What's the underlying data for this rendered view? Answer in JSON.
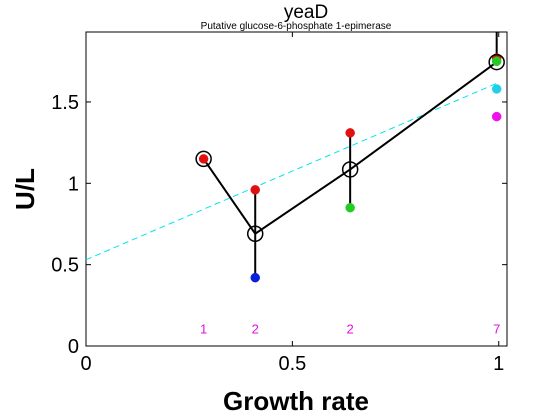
{
  "chart_data": {
    "type": "line",
    "title": "yeaD",
    "subtitle": "Putative glucose-6-phosphate 1-epimerase",
    "xlabel": "Growth rate",
    "ylabel": "U/L",
    "xlim": [
      0,
      1.02
    ],
    "ylim": [
      0,
      1.93
    ],
    "xticks": [
      0,
      0.5,
      1
    ],
    "xtick_labels": [
      "0",
      "0.5",
      "1"
    ],
    "yticks": [
      0,
      0.5,
      1,
      1.5
    ],
    "ytick_labels": [
      "0",
      "0.5",
      "1",
      "1.5"
    ],
    "grid": false,
    "legend": "none",
    "mean_series": {
      "x": [
        0.285,
        0.41,
        0.64,
        0.995
      ],
      "y": [
        1.15,
        0.69,
        1.085,
        1.745
      ],
      "err_low": [
        1.15,
        0.42,
        0.85,
        1.745
      ],
      "err_high": [
        1.15,
        0.96,
        1.31,
        1.93
      ]
    },
    "fit_line": {
      "x": [
        0,
        1
      ],
      "y": [
        0.53,
        1.62
      ],
      "color": "#00e5ee"
    },
    "replicate_points": [
      {
        "x": 0.285,
        "y": 1.15,
        "color": "#e01010"
      },
      {
        "x": 0.41,
        "y": 0.96,
        "color": "#e01010"
      },
      {
        "x": 0.41,
        "y": 0.42,
        "color": "#0a1fdd"
      },
      {
        "x": 0.64,
        "y": 1.31,
        "color": "#e01010"
      },
      {
        "x": 0.64,
        "y": 0.85,
        "color": "#22cc22"
      },
      {
        "x": 0.995,
        "y": 1.77,
        "color": "#e01010"
      },
      {
        "x": 0.995,
        "y": 1.75,
        "color": "#22cc22"
      },
      {
        "x": 0.995,
        "y": 1.58,
        "color": "#22cfe8"
      },
      {
        "x": 0.995,
        "y": 1.41,
        "color": "#ee11ee"
      }
    ],
    "count_labels": {
      "x": [
        0.285,
        0.41,
        0.64,
        0.995
      ],
      "labels": [
        "1",
        "2",
        "2",
        "7"
      ],
      "y": 0.1,
      "color": "#e010e0"
    }
  }
}
